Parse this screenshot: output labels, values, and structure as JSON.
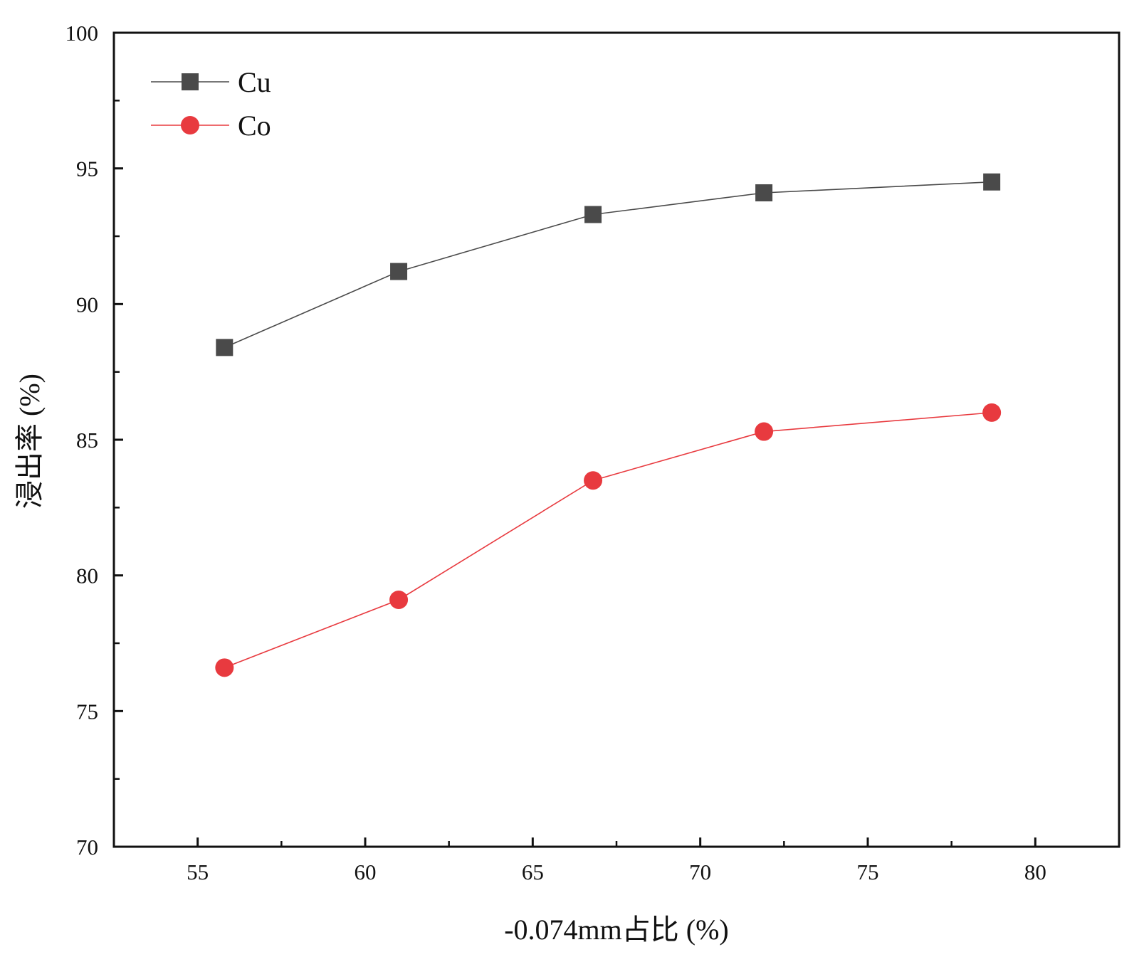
{
  "chart_data": {
    "type": "line",
    "title": "",
    "xlabel": "-0.074mm占比 (%)",
    "ylabel": "浸出率 (%)",
    "xlim": [
      52.5,
      82.5
    ],
    "ylim": [
      70,
      100
    ],
    "xticks": [
      55,
      60,
      65,
      70,
      75,
      80
    ],
    "yticks": [
      70,
      75,
      80,
      85,
      90,
      95,
      100
    ],
    "x_tick_labels": [
      "55",
      "60",
      "65",
      "70",
      "75",
      "80"
    ],
    "y_tick_labels": [
      "70",
      "75",
      "80",
      "85",
      "90",
      "95",
      "100"
    ],
    "x_minor_step": 2.5,
    "y_minor_step": 2.5,
    "grid": false,
    "legend_position": "top-left",
    "series": [
      {
        "name": "Cu",
        "marker": "square",
        "color": "#4a4a4a",
        "x": [
          55.8,
          61.0,
          66.8,
          71.9,
          78.7
        ],
        "y": [
          88.4,
          91.2,
          93.3,
          94.1,
          94.5
        ]
      },
      {
        "name": "Co",
        "marker": "circle",
        "color": "#e83a3f",
        "x": [
          55.8,
          61.0,
          66.8,
          71.9,
          78.7
        ],
        "y": [
          76.6,
          79.1,
          83.5,
          85.3,
          86.0
        ]
      }
    ]
  }
}
